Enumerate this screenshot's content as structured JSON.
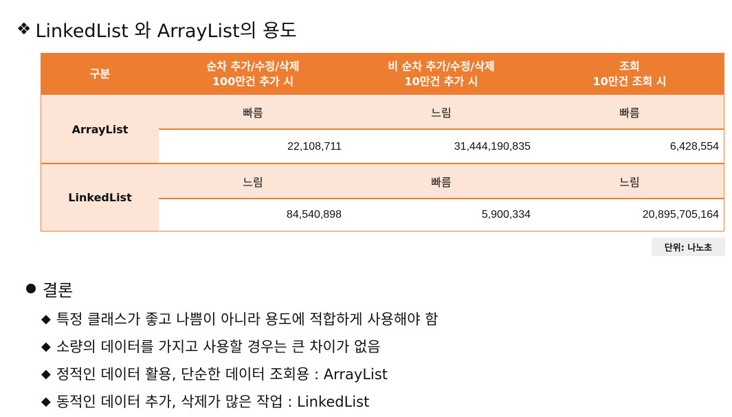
{
  "title": {
    "marker": "❖",
    "text": "LinkedList 와 ArrayList의 용도"
  },
  "table": {
    "headers": {
      "col0": "구분",
      "col1_line1": "순차 추가/수정/삭제",
      "col1_line2": "100만건 추가 시",
      "col2_line1": "비 순차 추가/수정/삭제",
      "col2_line2": "10만건 추가 시",
      "col3_line1": "조회",
      "col3_line2": "10만건 조회 시"
    },
    "rows": [
      {
        "label": "ArrayList",
        "speed": [
          "빠름",
          "느림",
          "빠름"
        ],
        "values": [
          "22,108,711",
          "31,444,190,835",
          "6,428,554"
        ]
      },
      {
        "label": "LinkedList",
        "speed": [
          "느림",
          "빠름",
          "느림"
        ],
        "values": [
          "84,540,898",
          "5,900,334",
          "20,895,705,164"
        ]
      }
    ]
  },
  "unit_note": "단위: 나노초",
  "conclusion": {
    "heading": "결론",
    "items": [
      "특정 클래스가 좋고 나쁨이 아니라 용도에 적합하게 사용해야 함",
      "소량의 데이터를 가지고 사용할 경우는 큰 차이가 없음",
      "정적인 데이터 활용, 단순한 데이터 조회용 : ArrayList",
      "동적인 데이터 추가, 삭제가 많은 작업 : LinkedList"
    ],
    "item_marker": "◆"
  }
}
